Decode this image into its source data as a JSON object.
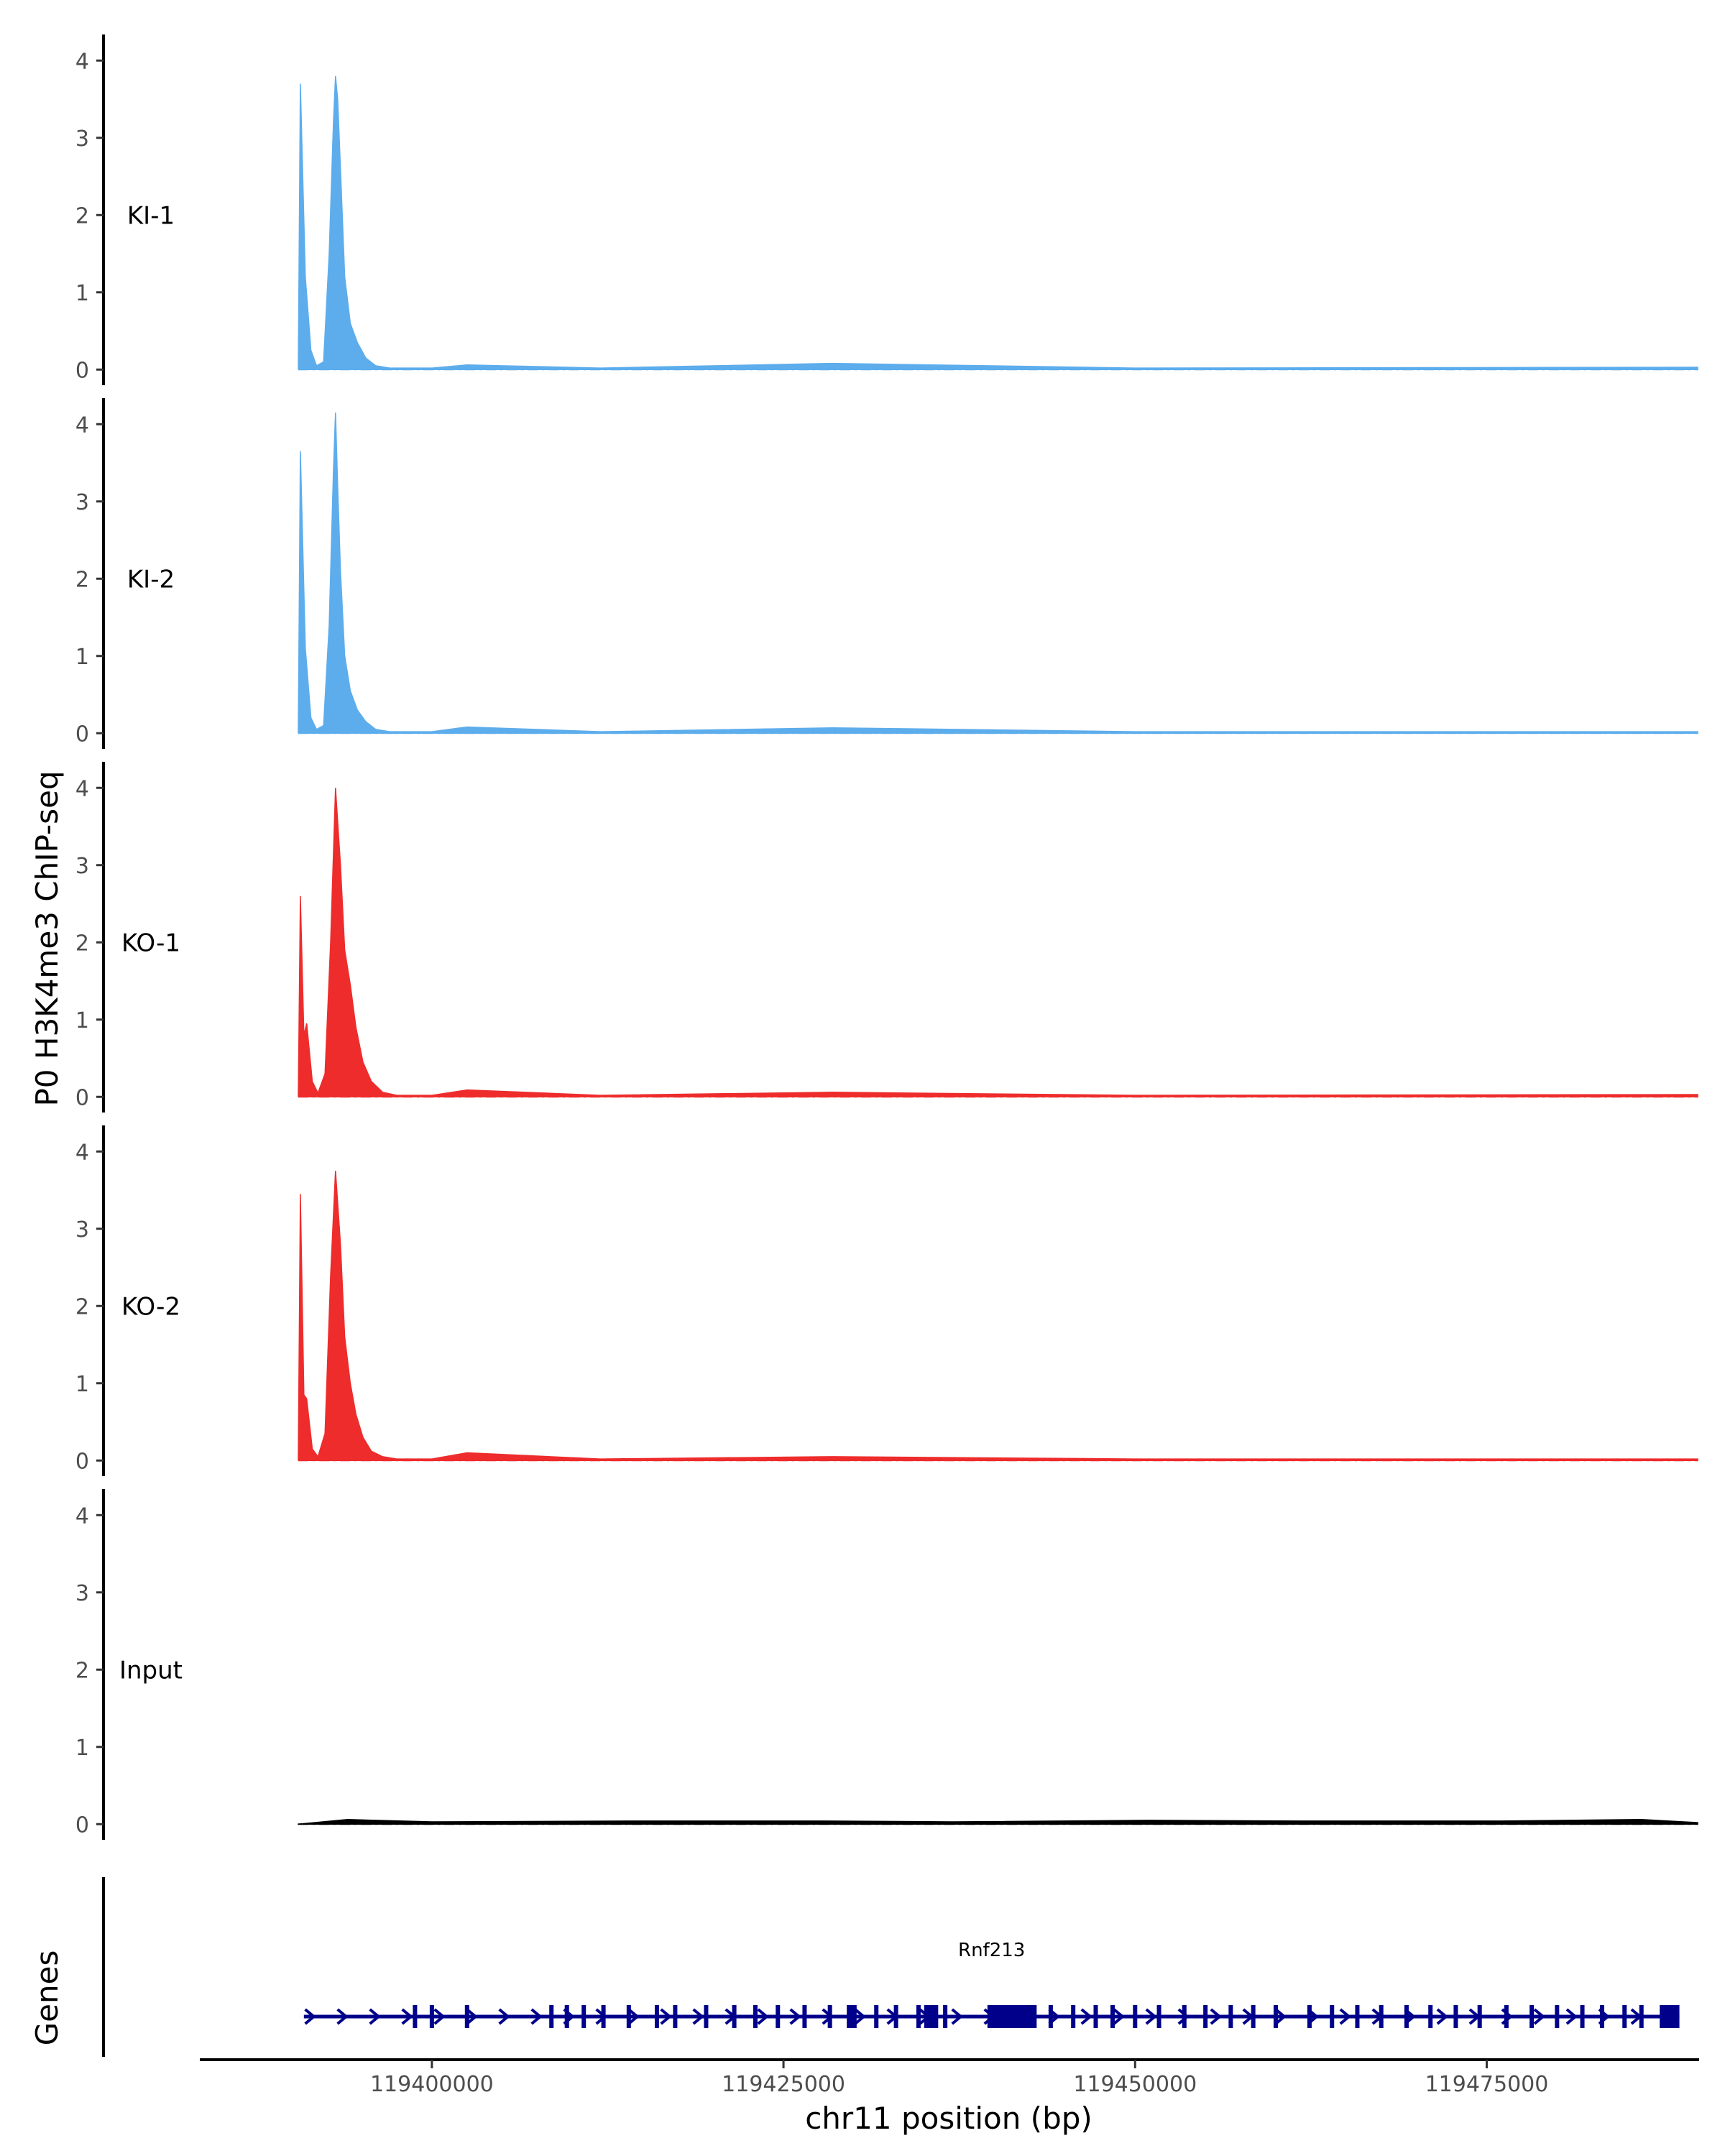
{
  "chart_data": {
    "type": "area",
    "ylabel": "P0 H3K4me3 ChIP-seq",
    "xlabel": "chr11 position (bp)",
    "xlim": [
      119383500,
      119490000
    ],
    "ylim": [
      0,
      4.3
    ],
    "y_ticks": [
      "0",
      "1",
      "2",
      "3",
      "4"
    ],
    "x_ticks": [
      {
        "value": 119400000,
        "label": "119400000"
      },
      {
        "value": 119425000,
        "label": "119425000"
      },
      {
        "value": 119450000,
        "label": "119450000"
      },
      {
        "value": 119475000,
        "label": "119475000"
      }
    ],
    "genes_label": "Genes",
    "tracks": [
      {
        "name": "KI-1",
        "color": "#5DADEC",
        "x": [
          119390500,
          119390650,
          119391000,
          119391400,
          119391800,
          119392300,
          119392700,
          119393000,
          119393150,
          119393300,
          119393500,
          119393800,
          119394200,
          119394700,
          119395300,
          119396000,
          119397000,
          119400000,
          119402500,
          119412000,
          119428500,
          119450000,
          119490000
        ],
        "values": [
          0.0,
          3.7,
          1.2,
          0.25,
          0.05,
          0.1,
          1.5,
          3.2,
          3.8,
          3.5,
          2.6,
          1.2,
          0.6,
          0.35,
          0.15,
          0.05,
          0.02,
          0.02,
          0.06,
          0.02,
          0.08,
          0.02,
          0.03
        ]
      },
      {
        "name": "KI-2",
        "color": "#5DADEC",
        "x": [
          119390500,
          119390650,
          119391000,
          119391400,
          119391800,
          119392300,
          119392700,
          119393000,
          119393150,
          119393300,
          119393500,
          119393800,
          119394200,
          119394700,
          119395300,
          119396000,
          119397000,
          119400000,
          119402500,
          119412000,
          119428500,
          119450000,
          119490000
        ],
        "values": [
          0.0,
          3.65,
          1.1,
          0.2,
          0.05,
          0.1,
          1.4,
          3.4,
          4.15,
          3.2,
          2.1,
          1.0,
          0.55,
          0.3,
          0.15,
          0.05,
          0.02,
          0.02,
          0.08,
          0.02,
          0.07,
          0.02,
          0.02
        ]
      },
      {
        "name": "KO-1",
        "color": "#EE2C2C",
        "x": [
          119390500,
          119390650,
          119390900,
          119391100,
          119391500,
          119391900,
          119392400,
          119392800,
          119393150,
          119393500,
          119393800,
          119394200,
          119394600,
          119395100,
          119395700,
          119396500,
          119397500,
          119400000,
          119402500,
          119412000,
          119428500,
          119450000,
          119490000
        ],
        "values": [
          0.0,
          2.6,
          0.8,
          0.95,
          0.2,
          0.05,
          0.3,
          2.0,
          4.0,
          3.0,
          1.9,
          1.45,
          0.9,
          0.45,
          0.2,
          0.06,
          0.02,
          0.02,
          0.09,
          0.02,
          0.06,
          0.02,
          0.03
        ]
      },
      {
        "name": "KO-2",
        "color": "#EE2C2C",
        "x": [
          119390500,
          119390650,
          119390900,
          119391100,
          119391500,
          119391900,
          119392400,
          119392800,
          119393150,
          119393500,
          119393800,
          119394200,
          119394600,
          119395100,
          119395700,
          119396500,
          119397500,
          119400000,
          119402500,
          119412000,
          119428500,
          119450000,
          119490000
        ],
        "values": [
          0.0,
          3.45,
          0.85,
          0.8,
          0.15,
          0.05,
          0.35,
          2.4,
          3.75,
          2.8,
          1.6,
          1.0,
          0.6,
          0.3,
          0.12,
          0.05,
          0.02,
          0.02,
          0.1,
          0.02,
          0.05,
          0.02,
          0.02
        ]
      },
      {
        "name": "Input",
        "color": "#000000",
        "x": [
          119390500,
          119394000,
          119400000,
          119414000,
          119428000,
          119437000,
          119451000,
          119462000,
          119476000,
          119486000,
          119490000
        ],
        "values": [
          0.0,
          0.06,
          0.03,
          0.04,
          0.04,
          0.03,
          0.05,
          0.04,
          0.04,
          0.06,
          0.02
        ]
      }
    ],
    "gene": {
      "name": "Rnf213",
      "color": "#00008B",
      "start": 119390900,
      "end": 119488700,
      "strand": "+",
      "exons": [
        119398800,
        119400000,
        119402500,
        119408500,
        119409600,
        119410800,
        119412200,
        119414000,
        119416000,
        119417300,
        119419500,
        119421500,
        119423000,
        119424600,
        119426500,
        119428300,
        119430000,
        119431600,
        119433000,
        119434600,
        119436500,
        119442500,
        119444000,
        119445600,
        119447200,
        119448400,
        119450000,
        119451700,
        119453500,
        119455000,
        119456800,
        119458400,
        119460000,
        119462400,
        119464000,
        119465800,
        119467500,
        119469300,
        119471000,
        119472800,
        119474500,
        119476400,
        119478200,
        119480000,
        119481800,
        119483200,
        119484800,
        119486000
      ],
      "large_exons": [
        [
          119429500,
          119430200
        ],
        [
          119435000,
          119436000
        ],
        [
          119439500,
          119443000
        ],
        [
          119487300,
          119488700
        ]
      ]
    }
  }
}
